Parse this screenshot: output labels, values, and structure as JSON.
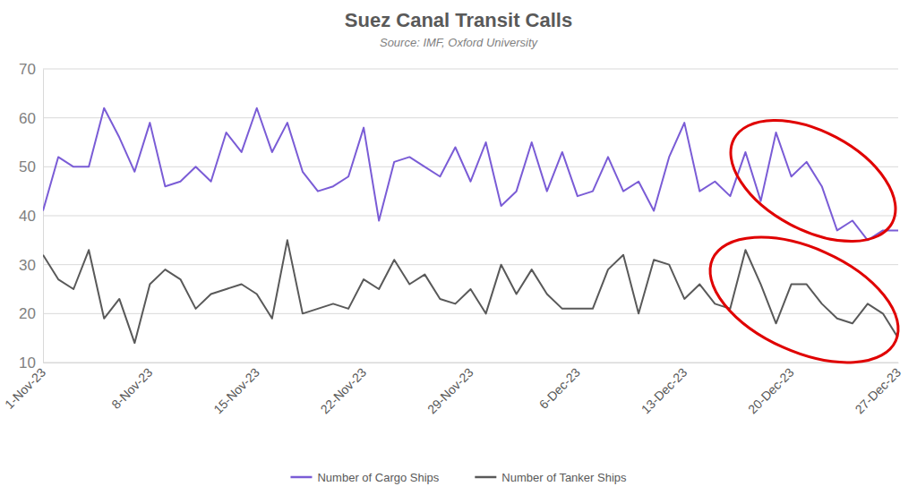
{
  "chart_data": {
    "type": "line",
    "title": "Suez Canal Transit Calls",
    "subtitle": "Source: IMF, Oxford University",
    "categories": [
      "1-Nov-23",
      null,
      null,
      null,
      null,
      null,
      null,
      "8-Nov-23",
      null,
      null,
      null,
      null,
      null,
      null,
      "15-Nov-23",
      null,
      null,
      null,
      null,
      null,
      null,
      "22-Nov-23",
      null,
      null,
      null,
      null,
      null,
      null,
      "29-Nov-23",
      null,
      null,
      null,
      null,
      null,
      null,
      "6-Dec-23",
      null,
      null,
      null,
      null,
      null,
      null,
      "13-Dec-23",
      null,
      null,
      null,
      null,
      null,
      null,
      "20-Dec-23",
      null,
      null,
      null,
      null,
      null,
      null,
      "27-Dec-23"
    ],
    "series": [
      {
        "name": "Number of Cargo Ships",
        "color": "#7a5cd6",
        "values": [
          41,
          52,
          50,
          50,
          62,
          56,
          49,
          59,
          46,
          47,
          50,
          47,
          57,
          53,
          62,
          53,
          59,
          49,
          45,
          46,
          48,
          58,
          39,
          51,
          52,
          50,
          48,
          54,
          47,
          55,
          42,
          45,
          55,
          45,
          53,
          44,
          45,
          52,
          45,
          47,
          41,
          52,
          59,
          45,
          47,
          44,
          53,
          43,
          57,
          48,
          51,
          46,
          37,
          39,
          35,
          37,
          37
        ]
      },
      {
        "name": "Number of Tanker Ships",
        "color": "#595959",
        "values": [
          32,
          27,
          25,
          33,
          19,
          23,
          14,
          26,
          29,
          27,
          21,
          24,
          25,
          26,
          24,
          19,
          35,
          20,
          21,
          22,
          21,
          27,
          25,
          31,
          26,
          28,
          23,
          22,
          25,
          20,
          30,
          24,
          29,
          24,
          21,
          21,
          21,
          29,
          32,
          20,
          31,
          30,
          23,
          26,
          22,
          21,
          33,
          26,
          18,
          26,
          26,
          22,
          19,
          18,
          22,
          20,
          15
        ]
      }
    ],
    "ylim": [
      10,
      70
    ],
    "yticks": [
      10,
      20,
      30,
      40,
      50,
      60,
      70
    ],
    "grid": true,
    "legend": "bottom"
  }
}
